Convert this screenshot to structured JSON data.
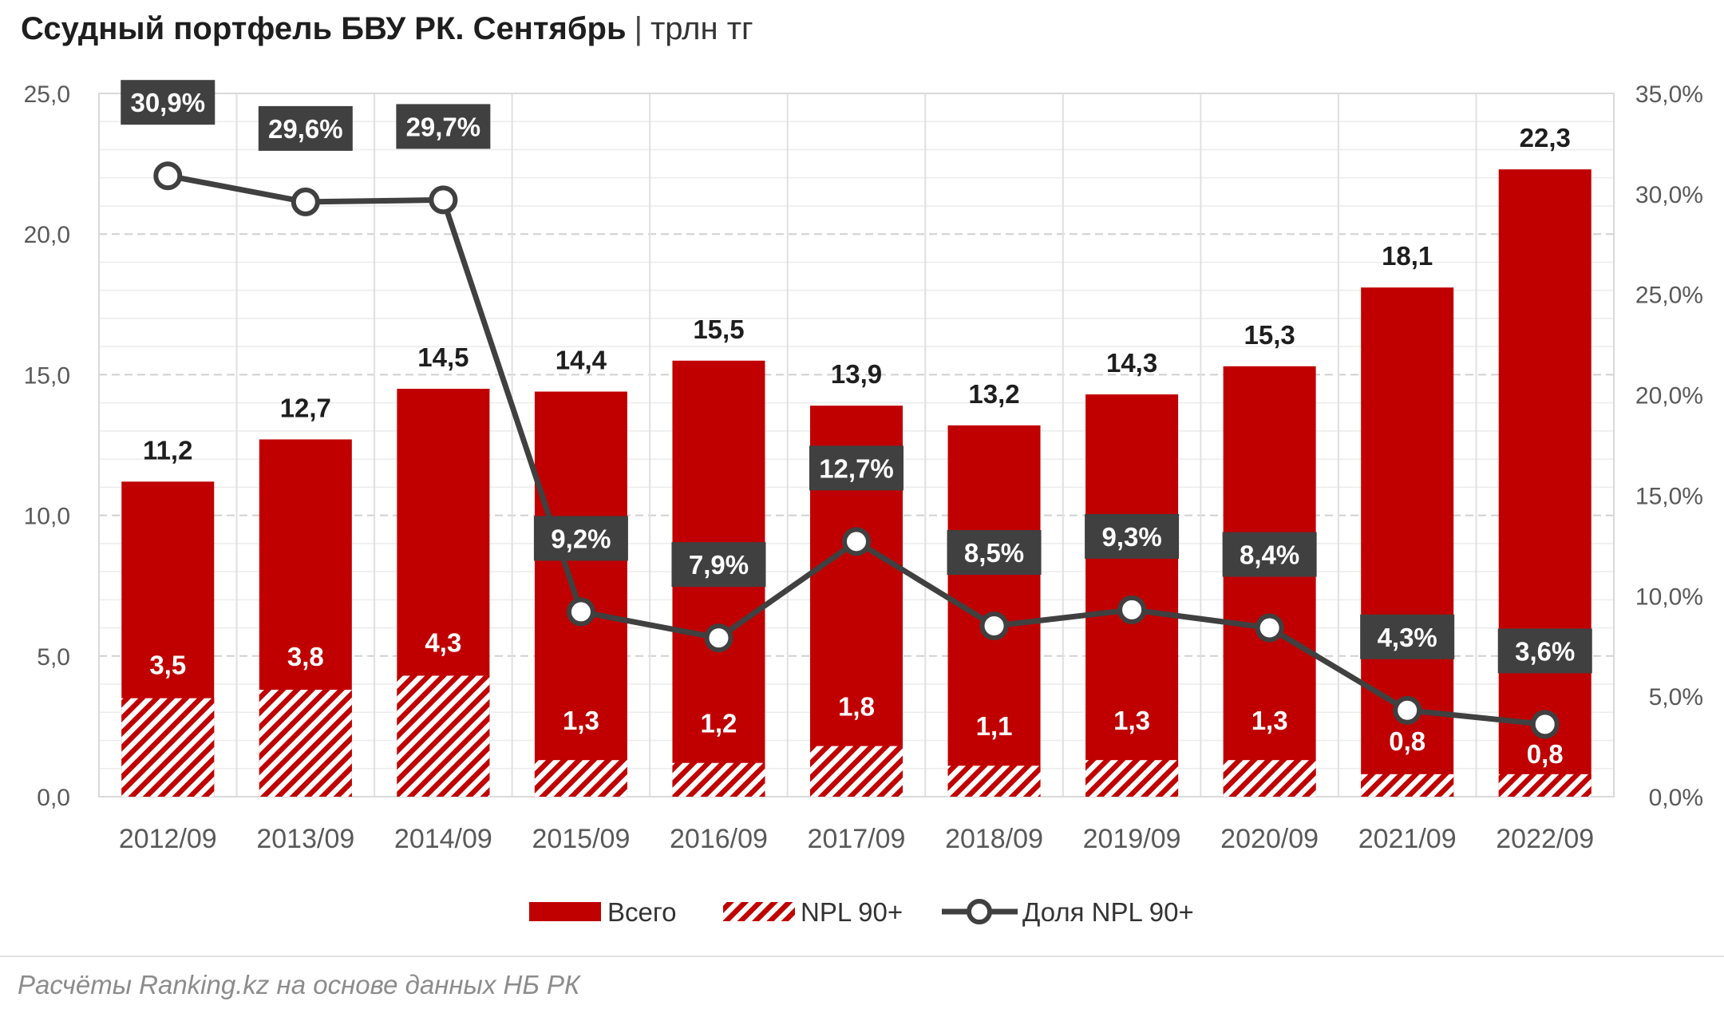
{
  "title": {
    "main": "Ссудный портфель БВУ РК. Сентябрь",
    "separator": "|",
    "unit": "трлн тг"
  },
  "source": "Расчёты Ranking.kz на основе данных НБ РК",
  "colors": {
    "total_bar": "#c00000",
    "npl_hatch": "#c00000",
    "line": "#404040",
    "marker_fill": "#ffffff",
    "label_box": "#404040",
    "grid": "#d9d9d9"
  },
  "chart_data": {
    "type": "bar",
    "categories": [
      "2012/09",
      "2013/09",
      "2014/09",
      "2015/09",
      "2016/09",
      "2017/09",
      "2018/09",
      "2019/09",
      "2020/09",
      "2021/09",
      "2022/09"
    ],
    "series": [
      {
        "name": "Всего",
        "type": "bar",
        "axis": "left",
        "values": [
          11.2,
          12.7,
          14.5,
          14.4,
          15.5,
          13.9,
          13.2,
          14.3,
          15.3,
          18.1,
          22.3
        ],
        "labels": [
          "11,2",
          "12,7",
          "14,5",
          "14,4",
          "15,5",
          "13,9",
          "13,2",
          "14,3",
          "15,3",
          "18,1",
          "22,3"
        ]
      },
      {
        "name": "NPL 90+",
        "type": "bar-hatched",
        "axis": "left",
        "values": [
          3.5,
          3.8,
          4.3,
          1.3,
          1.2,
          1.8,
          1.1,
          1.3,
          1.3,
          0.8,
          0.8
        ],
        "labels": [
          "3,5",
          "3,8",
          "4,3",
          "1,3",
          "1,2",
          "1,8",
          "1,1",
          "1,3",
          "1,3",
          "0,8",
          "0,8"
        ]
      },
      {
        "name": "Доля NPL 90+",
        "type": "line",
        "axis": "right",
        "values": [
          30.9,
          29.6,
          29.7,
          9.2,
          7.9,
          12.7,
          8.5,
          9.3,
          8.4,
          4.3,
          3.6
        ],
        "labels": [
          "30,9%",
          "29,6%",
          "29,7%",
          "9,2%",
          "7,9%",
          "12,7%",
          "8,5%",
          "9,3%",
          "8,4%",
          "4,3%",
          "3,6%"
        ]
      }
    ],
    "y_left": {
      "min": 0,
      "max": 25,
      "ticks": [
        "0,0",
        "5,0",
        "10,0",
        "15,0",
        "20,0",
        "25,0"
      ]
    },
    "y_right": {
      "min": 0,
      "max": 35,
      "ticks": [
        "0,0%",
        "5,0%",
        "10,0%",
        "15,0%",
        "20,0%",
        "25,0%",
        "30,0%",
        "35,0%"
      ]
    },
    "grid": true,
    "legend_position": "bottom"
  }
}
